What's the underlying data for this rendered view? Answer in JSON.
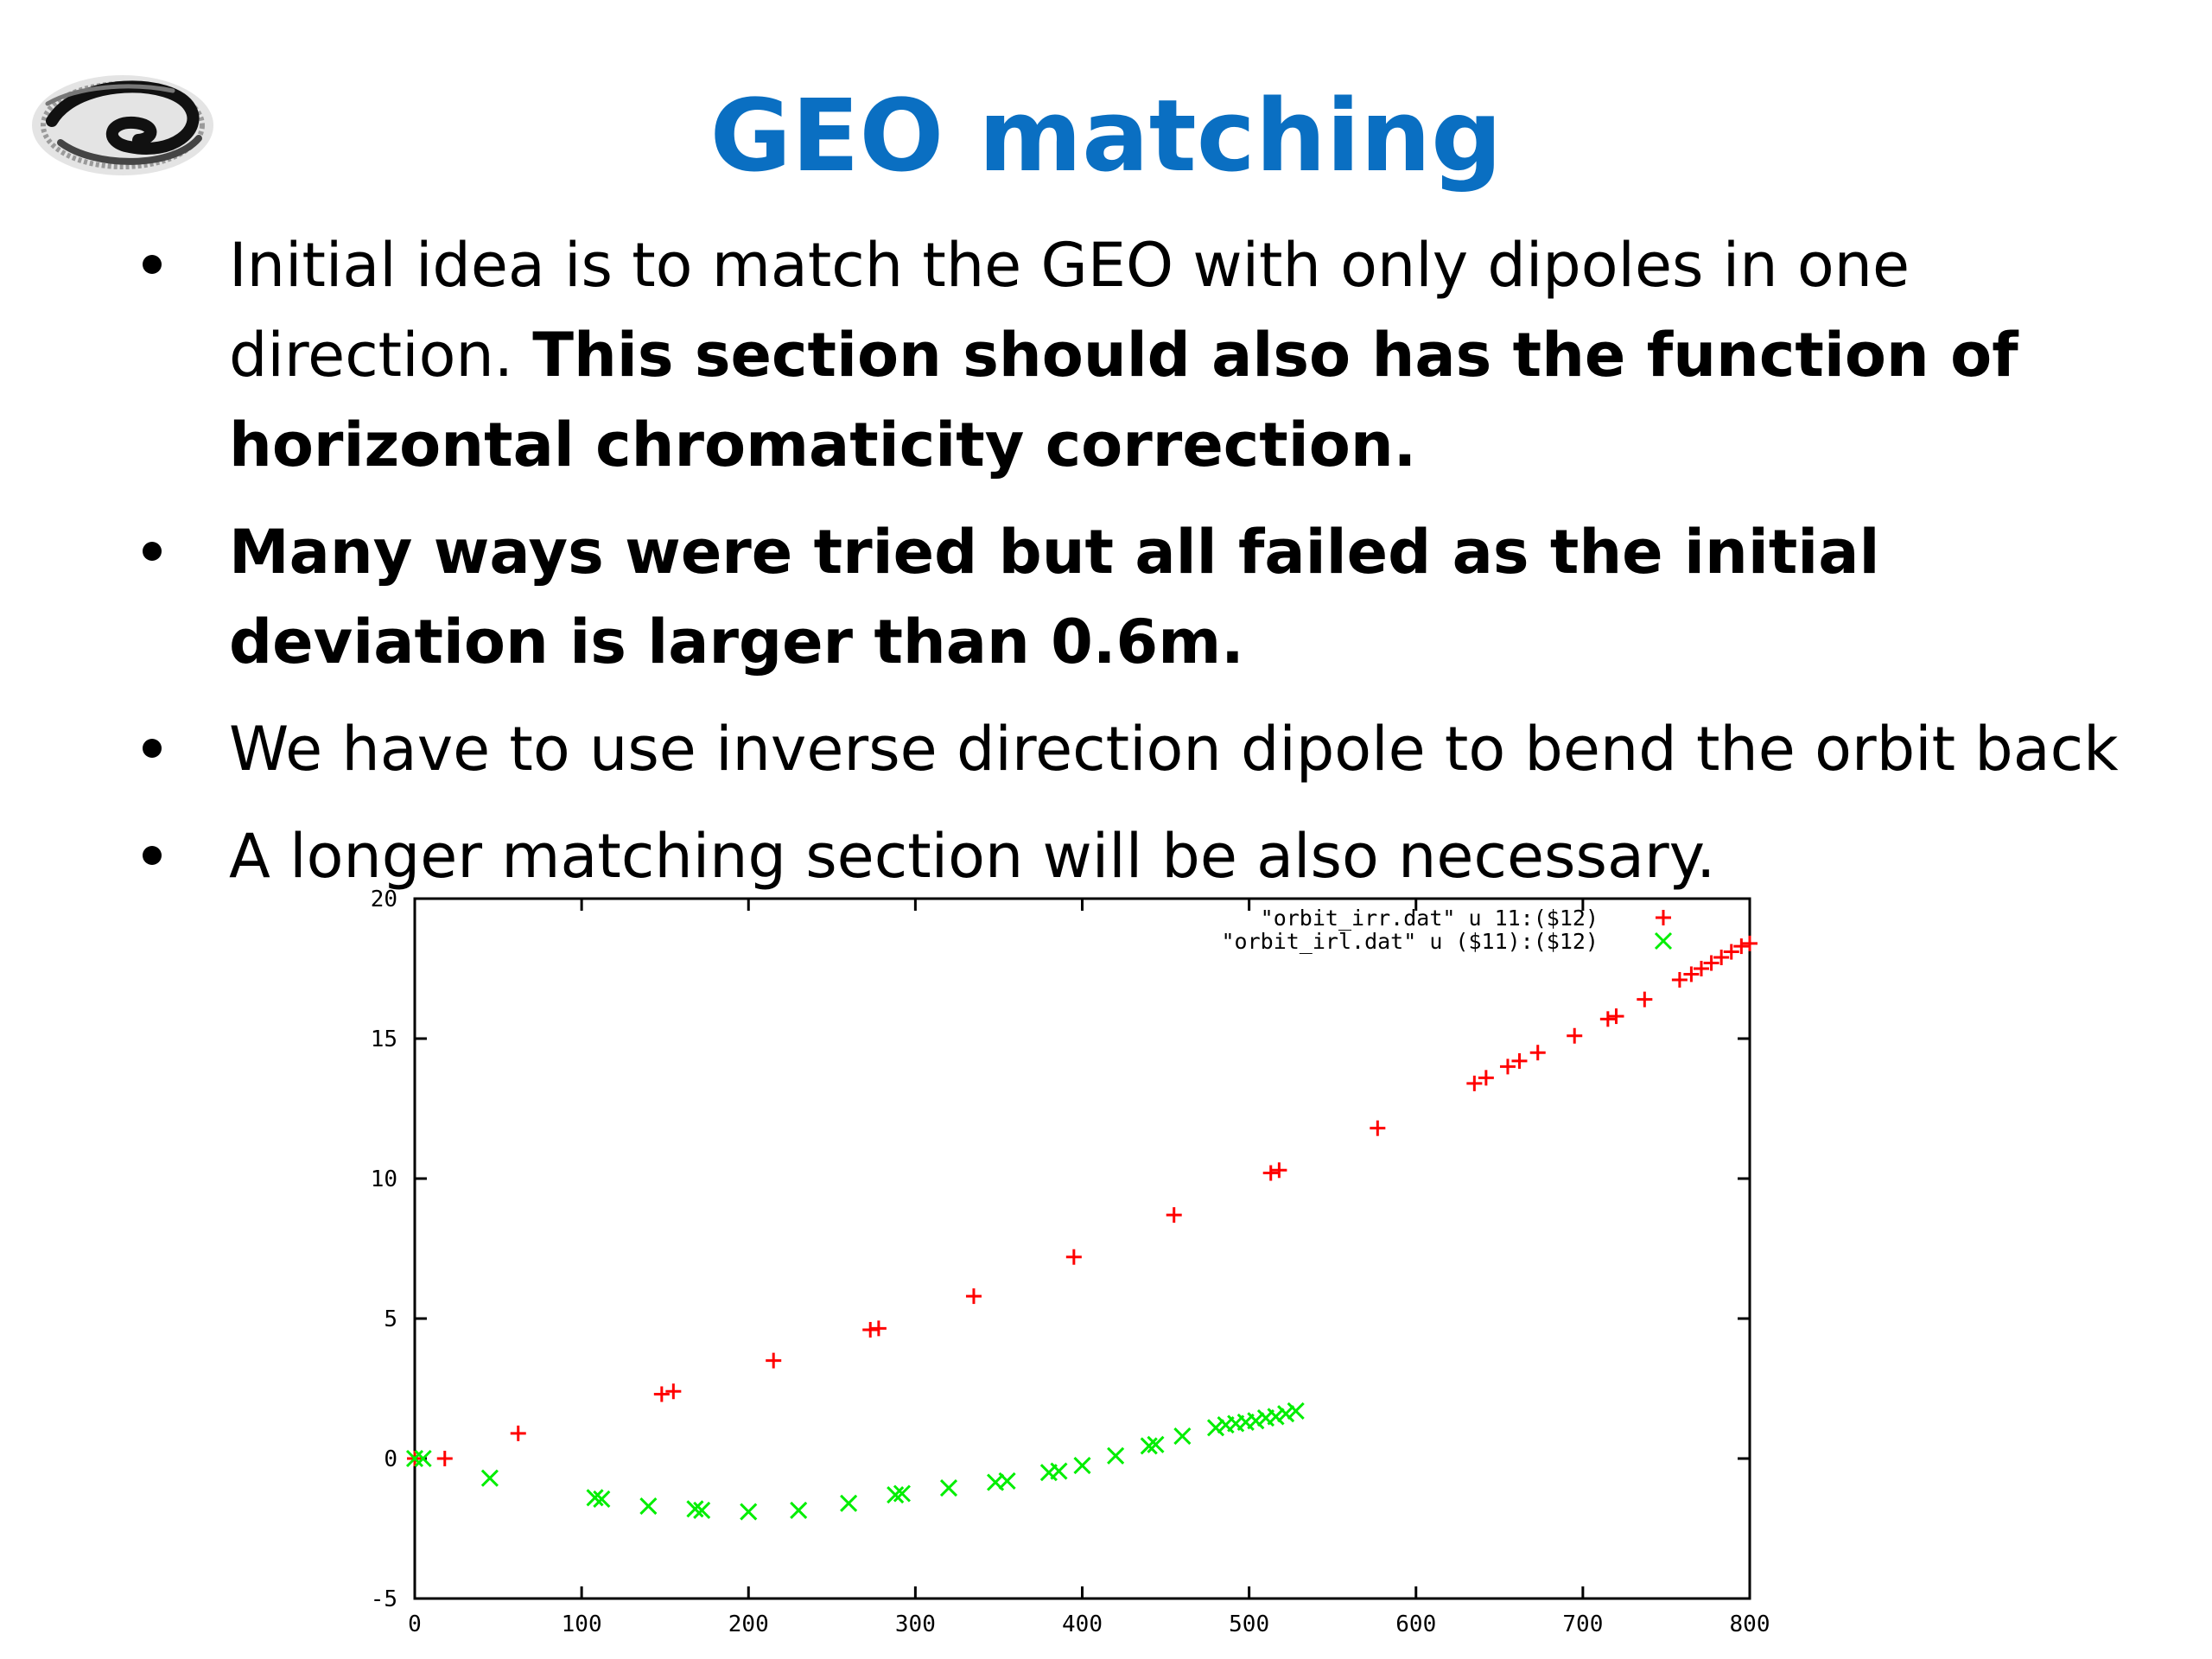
{
  "slide": {
    "title": "GEO matching",
    "bullets": [
      {
        "text": "Initial idea is to match the GEO with only dipoles in one direction. ",
        "bold_text": "This section should also has the function of horizontal chromaticity correction."
      },
      {
        "text": "",
        "bold_text": "Many ways were tried but all failed as the initial deviation is larger than 0.6m."
      },
      {
        "text": "We have to use inverse direction dipole to bend the orbit back",
        "bold_text": ""
      },
      {
        "text": "A longer matching section will be also necessary.",
        "bold_text": ""
      }
    ]
  },
  "chart_data": {
    "type": "scatter",
    "xlim": [
      0,
      800
    ],
    "ylim": [
      -5,
      20
    ],
    "x_ticks": [
      "0",
      "100",
      "200",
      "300",
      "400",
      "500",
      "600",
      "700",
      "800"
    ],
    "y_ticks": [
      "-5",
      "0",
      "5",
      "10",
      "15",
      "20"
    ],
    "legend_position": "top-right",
    "series": [
      {
        "name": "\"orbit_irr.dat\" u 11:($12)",
        "marker": "plus",
        "color": "#ff0000",
        "points": [
          [
            0,
            0
          ],
          [
            18,
            0
          ],
          [
            62,
            0.9
          ],
          [
            148,
            2.3
          ],
          [
            155,
            2.4
          ],
          [
            215,
            3.5
          ],
          [
            273,
            4.6
          ],
          [
            278,
            4.65
          ],
          [
            335,
            5.8
          ],
          [
            395,
            7.2
          ],
          [
            455,
            8.7
          ],
          [
            513,
            10.2
          ],
          [
            518,
            10.3
          ],
          [
            577,
            11.8
          ],
          [
            635,
            13.4
          ],
          [
            642,
            13.6
          ],
          [
            655,
            14.0
          ],
          [
            662,
            14.2
          ],
          [
            673,
            14.5
          ],
          [
            695,
            15.1
          ],
          [
            715,
            15.7
          ],
          [
            720,
            15.8
          ],
          [
            737,
            16.4
          ],
          [
            758,
            17.1
          ],
          [
            765,
            17.3
          ],
          [
            771,
            17.5
          ],
          [
            777,
            17.7
          ],
          [
            783,
            17.9
          ],
          [
            789,
            18.1
          ],
          [
            795,
            18.3
          ],
          [
            800,
            18.4
          ]
        ]
      },
      {
        "name": "\"orbit_irl.dat\" u ($11):($12)",
        "marker": "cross",
        "color": "#00ee00",
        "points": [
          [
            0,
            0
          ],
          [
            5,
            0
          ],
          [
            45,
            -0.7
          ],
          [
            108,
            -1.4
          ],
          [
            112,
            -1.45
          ],
          [
            140,
            -1.7
          ],
          [
            168,
            -1.8
          ],
          [
            172,
            -1.85
          ],
          [
            200,
            -1.9
          ],
          [
            230,
            -1.85
          ],
          [
            260,
            -1.6
          ],
          [
            288,
            -1.3
          ],
          [
            292,
            -1.25
          ],
          [
            320,
            -1.05
          ],
          [
            348,
            -0.85
          ],
          [
            355,
            -0.8
          ],
          [
            380,
            -0.5
          ],
          [
            386,
            -0.45
          ],
          [
            400,
            -0.25
          ],
          [
            420,
            0.1
          ],
          [
            440,
            0.45
          ],
          [
            444,
            0.5
          ],
          [
            460,
            0.8
          ],
          [
            480,
            1.1
          ],
          [
            486,
            1.2
          ],
          [
            492,
            1.25
          ],
          [
            498,
            1.3
          ],
          [
            504,
            1.35
          ],
          [
            510,
            1.45
          ],
          [
            516,
            1.5
          ],
          [
            522,
            1.6
          ],
          [
            528,
            1.7
          ]
        ]
      }
    ],
    "extra_dot": {
      "color": "#0000cc"
    }
  }
}
